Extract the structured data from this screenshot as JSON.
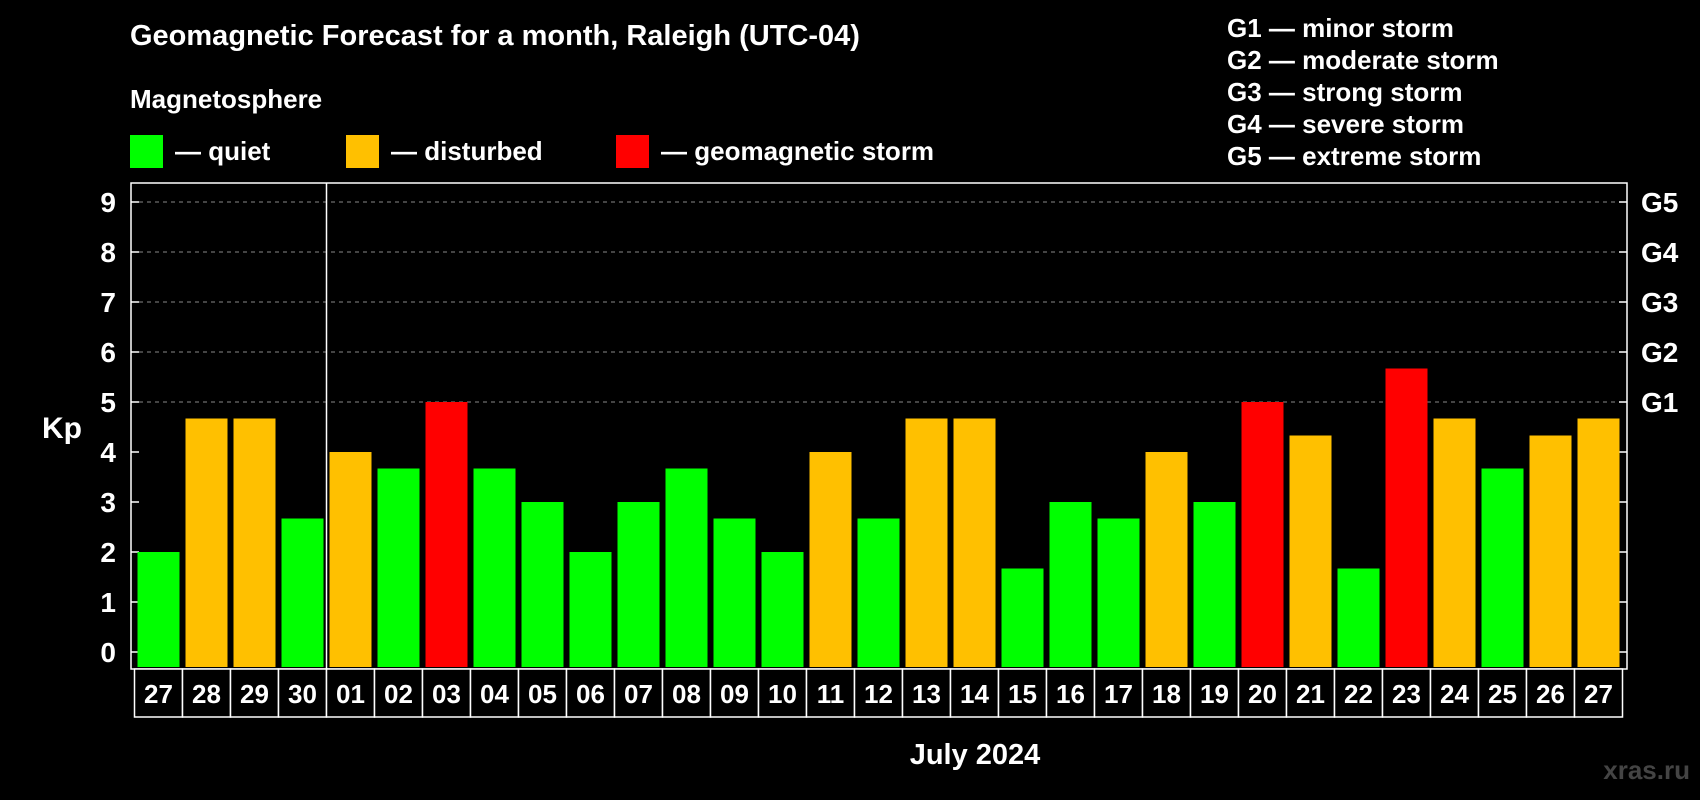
{
  "header": {
    "title": "Geomagnetic Forecast for a month, Raleigh (UTC-04)",
    "magnetosphere_title": "Magnetosphere"
  },
  "legend": [
    {
      "label": "— quiet",
      "color": "#00ff00"
    },
    {
      "label": "— disturbed",
      "color": "#ffc000"
    },
    {
      "label": "— geomagnetic storm",
      "color": "#ff0000"
    }
  ],
  "g_levels": [
    "G1 — minor storm",
    "G2 — moderate storm",
    "G3 — strong storm",
    "G4 — severe storm",
    "G5 — extreme storm"
  ],
  "watermark": "xras.ru",
  "chart_data": {
    "type": "bar",
    "ylabel": "Kp",
    "xlabel": "July 2024",
    "ylim": [
      0,
      9
    ],
    "yticks": [
      "0",
      "1",
      "2",
      "3",
      "4",
      "5",
      "6",
      "7",
      "8",
      "9"
    ],
    "right_axis_labels": [
      {
        "kp": 5,
        "label": "G1"
      },
      {
        "kp": 6,
        "label": "G2"
      },
      {
        "kp": 7,
        "label": "G3"
      },
      {
        "kp": 8,
        "label": "G4"
      },
      {
        "kp": 9,
        "label": "G5"
      }
    ],
    "grid": "dashed horizontal at Kp 5-9",
    "month_separator_after": "30",
    "categories": [
      "27",
      "28",
      "29",
      "30",
      "01",
      "02",
      "03",
      "04",
      "05",
      "06",
      "07",
      "08",
      "09",
      "10",
      "11",
      "12",
      "13",
      "14",
      "15",
      "16",
      "17",
      "18",
      "19",
      "20",
      "21",
      "22",
      "23",
      "24",
      "25",
      "26",
      "27"
    ],
    "values": [
      2,
      4.67,
      4.67,
      2.67,
      4,
      3.67,
      5,
      3.67,
      3,
      2,
      3,
      3.67,
      2.67,
      2,
      4,
      2.67,
      4.67,
      4.67,
      1.67,
      3,
      2.67,
      4,
      3,
      5,
      4.33,
      1.67,
      5.67,
      4.67,
      3.67,
      4.33,
      4.67
    ],
    "levels": [
      "quiet",
      "disturbed",
      "disturbed",
      "quiet",
      "disturbed",
      "quiet",
      "storm",
      "quiet",
      "quiet",
      "quiet",
      "quiet",
      "quiet",
      "quiet",
      "quiet",
      "disturbed",
      "quiet",
      "disturbed",
      "disturbed",
      "quiet",
      "quiet",
      "quiet",
      "disturbed",
      "quiet",
      "storm",
      "disturbed",
      "quiet",
      "storm",
      "disturbed",
      "quiet",
      "disturbed",
      "disturbed"
    ],
    "colors": {
      "quiet": "#00ff00",
      "disturbed": "#ffc000",
      "storm": "#ff0000"
    }
  }
}
